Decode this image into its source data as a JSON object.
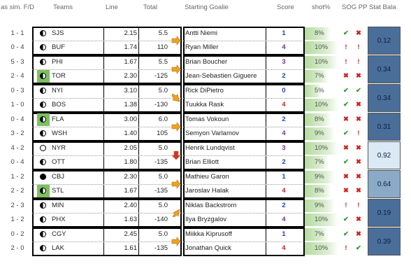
{
  "headers": {
    "sim": "as sim. F/D",
    "teams": "Teams",
    "line": "Line",
    "total": "Total",
    "goalie": "Starting Goalie",
    "score": "Score",
    "shot": "shot%",
    "sog_pp": "SOG PP",
    "stat": "Stat Bala"
  },
  "colors": {
    "score_blue": "#1f3fbf",
    "score_purple": "#7a2a9a",
    "score_red": "#cc2222",
    "arrow_orange": "#f0a020",
    "arrow_red": "#d83030",
    "bar_green": "#b5dba0",
    "check_green": "#2a9d2a",
    "stat_dark": "#4a6e9a",
    "stat_mid": "#8aaac8",
    "stat_light": "#dbe9f5"
  },
  "games": [
    {
      "arrow": "right",
      "stat": "0.12",
      "stat_level": "dark",
      "rows": [
        {
          "sim": "1 - 1",
          "icon": "half",
          "team": "SJS",
          "line": "2.15",
          "total": "5.5",
          "goalie": "Antti Niemi",
          "score": "1",
          "score_color": "blue",
          "shot": "8%",
          "shot_pct": 8,
          "sog": "check",
          "pp": "x"
        },
        {
          "sim": "0 - 4",
          "icon": "half",
          "team": "BUF",
          "line": "1.74",
          "total": "110",
          "goalie": "Ryan Miller",
          "score": "4",
          "score_color": "purple",
          "shot": "10%",
          "shot_pct": 10,
          "sog": "bang",
          "pp": "bang"
        }
      ]
    },
    {
      "arrow": "right",
      "stat": "0.34",
      "stat_level": "dark",
      "rows": [
        {
          "sim": "5 - 3",
          "icon": "half",
          "team": "PHI",
          "line": "1.67",
          "total": "5.5",
          "goalie": "Brian Boucher",
          "score": "3",
          "score_color": "purple",
          "shot": "10%",
          "shot_pct": 10,
          "sog": "bang",
          "pp": "bang"
        },
        {
          "sim": "2 - 4",
          "icon": "green",
          "team": "TOR",
          "line": "2.30",
          "total": "-125",
          "goalie": "Jean-Sebastien Giguere",
          "score": "2",
          "score_color": "blue",
          "shot": "7%",
          "shot_pct": 7,
          "sog": "x",
          "pp": "x"
        }
      ]
    },
    {
      "arrow": "down",
      "stat": "0.34",
      "stat_level": "dark",
      "rows": [
        {
          "sim": "0 - 3",
          "icon": "half",
          "team": "NYI",
          "line": "3.10",
          "total": "5.0",
          "goalie": "Rick DiPietro",
          "score": "0",
          "score_color": "blue",
          "shot": "5%",
          "shot_pct": 5,
          "sog": "check",
          "pp": "check"
        },
        {
          "sim": "1 - 0",
          "icon": "half",
          "team": "BOS",
          "line": "1.38",
          "total": "-130",
          "goalie": "Tuukka Rask",
          "score": "4",
          "score_color": "red",
          "shot": "10%",
          "shot_pct": 10,
          "sog": "check",
          "pp": "x"
        }
      ]
    },
    {
      "arrow": "right",
      "stat": "0.31",
      "stat_level": "dark",
      "rows": [
        {
          "sim": "0 - 4",
          "icon": "green",
          "team": "FLA",
          "line": "3.00",
          "total": "6.0",
          "goalie": "Tomas Vokoun",
          "score": "2",
          "score_color": "blue",
          "shot": "8%",
          "shot_pct": 8,
          "sog": "x",
          "pp": "x"
        },
        {
          "sim": "3 - 2",
          "icon": "half",
          "team": "WSH",
          "line": "1.40",
          "total": "105",
          "goalie": "Semyon Varlamov",
          "score": "4",
          "score_color": "purple",
          "shot": "9%",
          "shot_pct": 9,
          "sog": "check",
          "pp": "bang"
        }
      ]
    },
    {
      "arrow": "redDown",
      "stat": "0.92",
      "stat_level": "light",
      "rows": [
        {
          "sim": "4 - 2",
          "icon": "empty",
          "team": "NYR",
          "line": "2.05",
          "total": "5.0",
          "goalie": "Henrik Lundqvist",
          "score": "3",
          "score_color": "purple",
          "shot": "10%",
          "shot_pct": 10,
          "sog": "x",
          "pp": "x"
        },
        {
          "sim": "0 - 4",
          "icon": "half",
          "team": "OTT",
          "line": "1.80",
          "total": "-135",
          "goalie": "Brian Elliott",
          "score": "2",
          "score_color": "blue",
          "shot": "7%",
          "shot_pct": 7,
          "sog": "check",
          "pp": "x"
        }
      ]
    },
    {
      "arrow": "right",
      "stat": "0.64",
      "stat_level": "mid",
      "rows": [
        {
          "sim": "1 - 2",
          "icon": "full",
          "team": "CBJ",
          "line": "2.30",
          "total": "5.0",
          "goalie": "Mathieu Garon",
          "score": "1",
          "score_color": "blue",
          "shot": "9%",
          "shot_pct": 9,
          "sog": "x",
          "pp": "x"
        },
        {
          "sim": "2 - 2",
          "icon": "green",
          "team": "STL",
          "line": "1.67",
          "total": "-135",
          "goalie": "Jaroslav Halak",
          "score": "4",
          "score_color": "red",
          "shot": "8%",
          "shot_pct": 8,
          "sog": "x",
          "pp": "x"
        }
      ]
    },
    {
      "arrow": "up",
      "stat": "0.19",
      "stat_level": "dark",
      "rows": [
        {
          "sim": "2 - 3",
          "icon": "half",
          "team": "MIN",
          "line": "2.40",
          "total": "5.0",
          "goalie": "Niklas Backstrom",
          "score": "2",
          "score_color": "blue",
          "shot": "9%",
          "shot_pct": 9,
          "sog": "bang",
          "pp": "bang"
        },
        {
          "sim": "1 - 2",
          "icon": "half",
          "team": "PHX",
          "line": "1.63",
          "total": "-140",
          "goalie": "Ilya Bryzgalov",
          "score": "4",
          "score_color": "purple",
          "shot": "10%",
          "shot_pct": 10,
          "sog": "check",
          "pp": "x"
        }
      ]
    },
    {
      "arrow": "right",
      "stat": "0.39",
      "stat_level": "dark",
      "rows": [
        {
          "sim": "0 - 2",
          "icon": "half",
          "team": "CGY",
          "line": "2.45",
          "total": "5.0",
          "goalie": "Miikka Kiprusoff",
          "score": "1",
          "score_color": "blue",
          "shot": "7%",
          "shot_pct": 7,
          "sog": "check",
          "pp": "x"
        },
        {
          "sim": "2 - 0",
          "icon": "half",
          "team": "LAK",
          "line": "1.61",
          "total": "-135",
          "goalie": "Jonathan Quick",
          "score": "4",
          "score_color": "red",
          "shot": "10%",
          "shot_pct": 10,
          "sog": "bang",
          "pp": "check"
        }
      ]
    }
  ]
}
